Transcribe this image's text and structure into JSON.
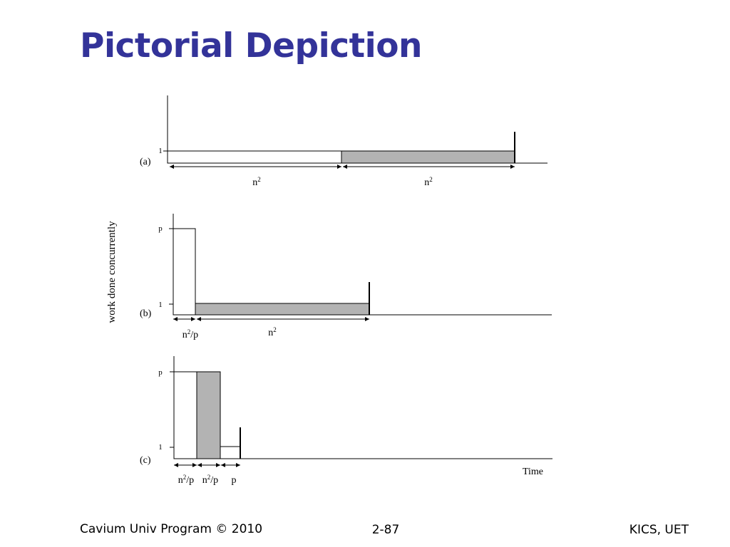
{
  "slide": {
    "title": "Pictorial Depiction"
  },
  "diagram": {
    "y_axis_label": "work done concurrently",
    "x_axis_label": "Time",
    "fill_color": "#b3b3b3",
    "panels": [
      {
        "id": "a",
        "tag": "(a)",
        "ticks": [
          "1"
        ],
        "segments": [
          {
            "label": "n",
            "sup": "2"
          },
          {
            "label": "n",
            "sup": "2"
          }
        ]
      },
      {
        "id": "b",
        "tag": "(b)",
        "ticks": [
          "p",
          "1"
        ],
        "segments": [
          {
            "label": "n",
            "sup": "2",
            "suffix": "/p"
          },
          {
            "label": "n",
            "sup": "2"
          }
        ]
      },
      {
        "id": "c",
        "tag": "(c)",
        "ticks": [
          "p",
          "1"
        ],
        "segments": [
          {
            "label": "n",
            "sup": "2",
            "suffix": "/p"
          },
          {
            "label": "n",
            "sup": "2",
            "suffix": "/p"
          },
          {
            "label": "p"
          }
        ]
      }
    ]
  },
  "footer": {
    "left": "Cavium Univ Program © 2010",
    "center": "2-87",
    "right": "KICS, UET"
  }
}
